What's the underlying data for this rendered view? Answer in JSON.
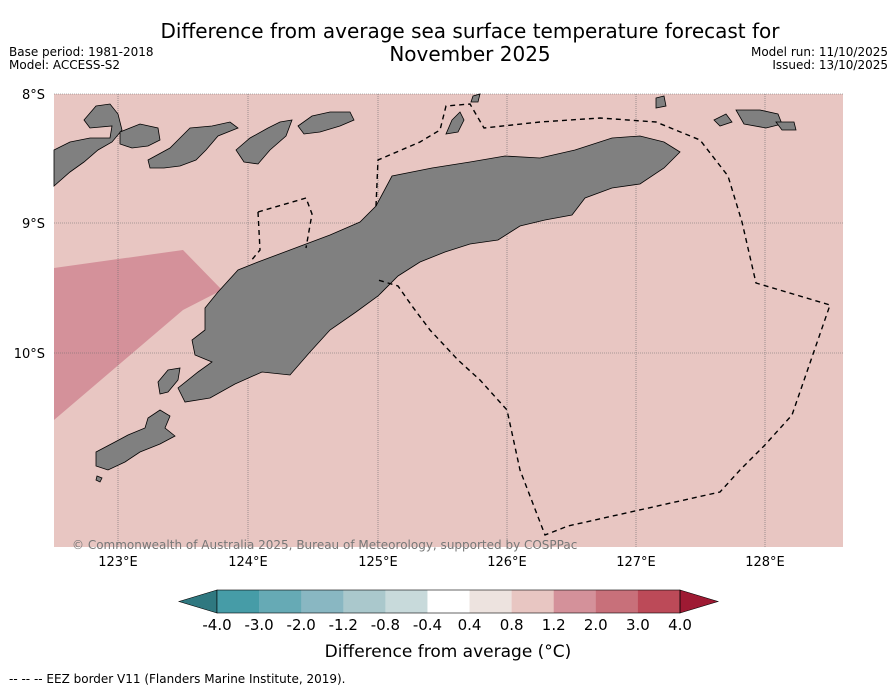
{
  "header": {
    "title_line1": "Difference from average sea surface temperature forecast for",
    "title_line2": "November 2025",
    "base_period": "Base period: 1981-2018",
    "model": "Model: ACCESS-S2",
    "model_run": "Model run: 11/10/2025",
    "issued": "Issued: 13/10/2025"
  },
  "map": {
    "lat_labels": [
      "8°S",
      "9°S",
      "10°S"
    ],
    "lon_labels": [
      "123°E",
      "124°E",
      "125°E",
      "126°E",
      "127°E",
      "128°E"
    ],
    "copyright": "© Commonwealth of Australia 2025, Bureau of Meteorology, supported by COSPPac",
    "colors": {
      "ocean_anomaly": "#e8c6c2",
      "warm_patch": "#d4919a",
      "land": "#808080",
      "eez": "#000000"
    }
  },
  "colorbar": {
    "title": "Difference from average (°C)",
    "tick_labels": [
      "-4.0",
      "-3.0",
      "-2.0",
      "-1.2",
      "-0.8",
      "-0.4",
      "0.4",
      "0.8",
      "1.2",
      "2.0",
      "3.0",
      "4.0"
    ],
    "colors": [
      "#2f7880",
      "#469ca7",
      "#66aab5",
      "#89b7c2",
      "#aac8cc",
      "#c8dadb",
      "#ffffff",
      "#ede3df",
      "#e8c6c2",
      "#d4919a",
      "#c8707a",
      "#bc4a58",
      "#9e1a33"
    ]
  },
  "footnote": "--  --  -- EEZ border V11 (Flanders Marine Institute, 2019)."
}
